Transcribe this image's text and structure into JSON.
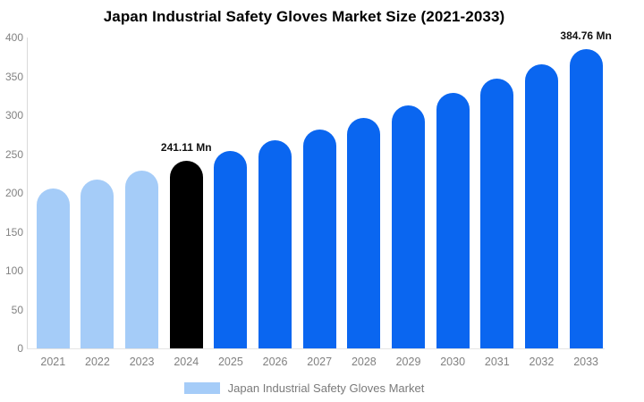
{
  "chart_data": {
    "type": "bar",
    "title": "Japan Industrial Safety Gloves Market Size (2021-2033)",
    "xlabel": "",
    "ylabel": "",
    "unit": "Mn",
    "categories": [
      "2021",
      "2022",
      "2023",
      "2024",
      "2025",
      "2026",
      "2027",
      "2028",
      "2029",
      "2030",
      "2031",
      "2032",
      "2033"
    ],
    "values": [
      206.3,
      217.3,
      228.9,
      241.11,
      253.96,
      267.5,
      281.76,
      296.78,
      312.6,
      329.27,
      346.82,
      365.3,
      384.76
    ],
    "bar_colors": [
      "#A5CCF8",
      "#A5CCF8",
      "#A5CCF8",
      "#000000",
      "#0A66F0",
      "#0A66F0",
      "#0A66F0",
      "#0A66F0",
      "#0A66F0",
      "#0A66F0",
      "#0A66F0",
      "#0A66F0",
      "#0A66F0"
    ],
    "ylim": [
      0,
      400
    ],
    "y_ticks": [
      0,
      50,
      100,
      150,
      200,
      250,
      300,
      350,
      400
    ],
    "grid": false,
    "annotations": [
      {
        "category": "2024",
        "text": "241.11 Mn"
      },
      {
        "category": "2033",
        "text": "384.76 Mn"
      }
    ],
    "legend": {
      "position": "bottom",
      "label": "Japan Industrial Safety Gloves Market",
      "swatch_color": "#A5CCF8"
    }
  }
}
